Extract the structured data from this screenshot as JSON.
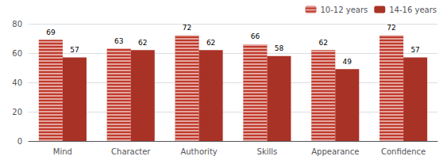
{
  "chart_data": {
    "type": "bar",
    "categories": [
      "Mind",
      "Character",
      "Authority",
      "Skills",
      "Appearance",
      "Confidence"
    ],
    "series": [
      {
        "name": "10-12 years",
        "color": "#c0392b",
        "values": [
          69,
          63,
          72,
          66,
          62,
          72
        ]
      },
      {
        "name": "14-16 years",
        "color": "#a93226",
        "values": [
          57,
          62,
          62,
          58,
          49,
          57
        ]
      }
    ],
    "ylim": [
      0,
      80
    ],
    "yticks": [
      0,
      20,
      40,
      60,
      80
    ],
    "grid": true,
    "legend": "upper right",
    "data_labels": true
  }
}
